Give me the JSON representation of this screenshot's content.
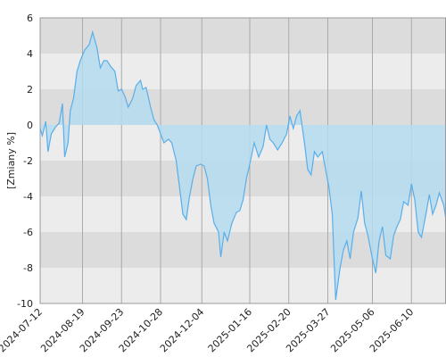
{
  "chart_data": {
    "type": "area",
    "y_label": "[Zmiany %]",
    "x": [
      "2024-07-12",
      "2024-07-14",
      "2024-07-17",
      "2024-07-19",
      "2024-07-22",
      "2024-07-26",
      "2024-07-29",
      "2024-08-01",
      "2024-08-03",
      "2024-08-06",
      "2024-08-08",
      "2024-08-11",
      "2024-08-14",
      "2024-08-17",
      "2024-08-21",
      "2024-08-25",
      "2024-08-28",
      "2024-09-01",
      "2024-09-04",
      "2024-09-07",
      "2024-09-10",
      "2024-09-13",
      "2024-09-17",
      "2024-09-20",
      "2024-09-23",
      "2024-09-26",
      "2024-09-29",
      "2024-10-03",
      "2024-10-06",
      "2024-10-10",
      "2024-10-12",
      "2024-10-15",
      "2024-10-19",
      "2024-10-22",
      "2024-10-25",
      "2024-10-28",
      "2024-10-31",
      "2024-11-04",
      "2024-11-07",
      "2024-11-11",
      "2024-11-14",
      "2024-11-17",
      "2024-11-20",
      "2024-11-23",
      "2024-11-26",
      "2024-11-29",
      "2024-12-03",
      "2024-12-06",
      "2024-12-09",
      "2024-12-12",
      "2024-12-15",
      "2024-12-19",
      "2024-12-21",
      "2024-12-24",
      "2024-12-27",
      "2024-12-31",
      "2025-01-04",
      "2025-01-07",
      "2025-01-10",
      "2025-01-13",
      "2025-01-16",
      "2025-01-20",
      "2025-01-24",
      "2025-01-28",
      "2025-01-31",
      "2025-02-03",
      "2025-02-06",
      "2025-02-10",
      "2025-02-14",
      "2025-02-18",
      "2025-02-21",
      "2025-02-24",
      "2025-02-27",
      "2025-03-02",
      "2025-03-06",
      "2025-03-09",
      "2025-03-12",
      "2025-03-15",
      "2025-03-18",
      "2025-03-22",
      "2025-03-25",
      "2025-03-28",
      "2025-03-31",
      "2025-04-03",
      "2025-04-07",
      "2025-04-10",
      "2025-04-13",
      "2025-04-16",
      "2025-04-19",
      "2025-04-23",
      "2025-04-26",
      "2025-04-29",
      "2025-05-02",
      "2025-05-06",
      "2025-05-09",
      "2025-05-12",
      "2025-05-15",
      "2025-05-18",
      "2025-05-22",
      "2025-05-25",
      "2025-05-28",
      "2025-05-31",
      "2025-06-03",
      "2025-06-07",
      "2025-06-10",
      "2025-06-13",
      "2025-06-16",
      "2025-06-19",
      "2025-06-23",
      "2025-06-26",
      "2025-06-29",
      "2025-07-02",
      "2025-07-05",
      "2025-07-09",
      "2025-07-11"
    ],
    "series": [
      {
        "color": "#5aaeea",
        "fill": "#b4dcef",
        "values": [
          -0.2,
          -0.6,
          0.2,
          -1.5,
          -0.5,
          -0.1,
          0.1,
          1.2,
          -1.8,
          -1.0,
          0.8,
          1.5,
          3.0,
          3.6,
          4.2,
          4.5,
          5.2,
          4.3,
          3.2,
          3.6,
          3.6,
          3.3,
          3.0,
          1.9,
          2.0,
          1.6,
          1.0,
          1.5,
          2.2,
          2.5,
          2.0,
          2.1,
          1.0,
          0.3,
          0.0,
          -0.5,
          -1.0,
          -0.8,
          -1.0,
          -2.0,
          -3.5,
          -5.0,
          -5.3,
          -4.0,
          -3.0,
          -2.3,
          -2.2,
          -2.3,
          -3.0,
          -4.5,
          -5.5,
          -6.0,
          -7.4,
          -6.0,
          -6.5,
          -5.5,
          -4.9,
          -4.8,
          -4.2,
          -3.0,
          -2.2,
          -1.0,
          -1.8,
          -1.2,
          0.0,
          -0.8,
          -1.0,
          -1.4,
          -1.0,
          -0.5,
          0.5,
          -0.2,
          0.5,
          0.8,
          -1.0,
          -2.5,
          -2.8,
          -1.5,
          -1.8,
          -1.5,
          -2.5,
          -3.5,
          -5.0,
          -9.8,
          -8.0,
          -7.0,
          -6.5,
          -7.5,
          -6.0,
          -5.2,
          -3.7,
          -5.5,
          -6.2,
          -7.5,
          -8.3,
          -6.5,
          -5.7,
          -7.3,
          -7.5,
          -6.2,
          -5.7,
          -5.3,
          -4.3,
          -4.5,
          -3.3,
          -4.2,
          -6.0,
          -6.3,
          -5.0,
          -3.9,
          -5.0,
          -4.5,
          -3.8,
          -4.5,
          -5.3
        ]
      }
    ],
    "xlim": [
      "2024-07-12",
      "2025-07-11"
    ],
    "xticks": [
      "2024-07-12",
      "2024-08-19",
      "2024-09-23",
      "2024-10-28",
      "2024-12-04",
      "2025-01-16",
      "2025-02-20",
      "2025-03-27",
      "2025-05-06",
      "2025-06-10"
    ],
    "ylim": [
      -10,
      6
    ],
    "yticks": [
      -10,
      -8,
      -6,
      -4,
      -2,
      0,
      2,
      4,
      6
    ],
    "grid": true
  }
}
